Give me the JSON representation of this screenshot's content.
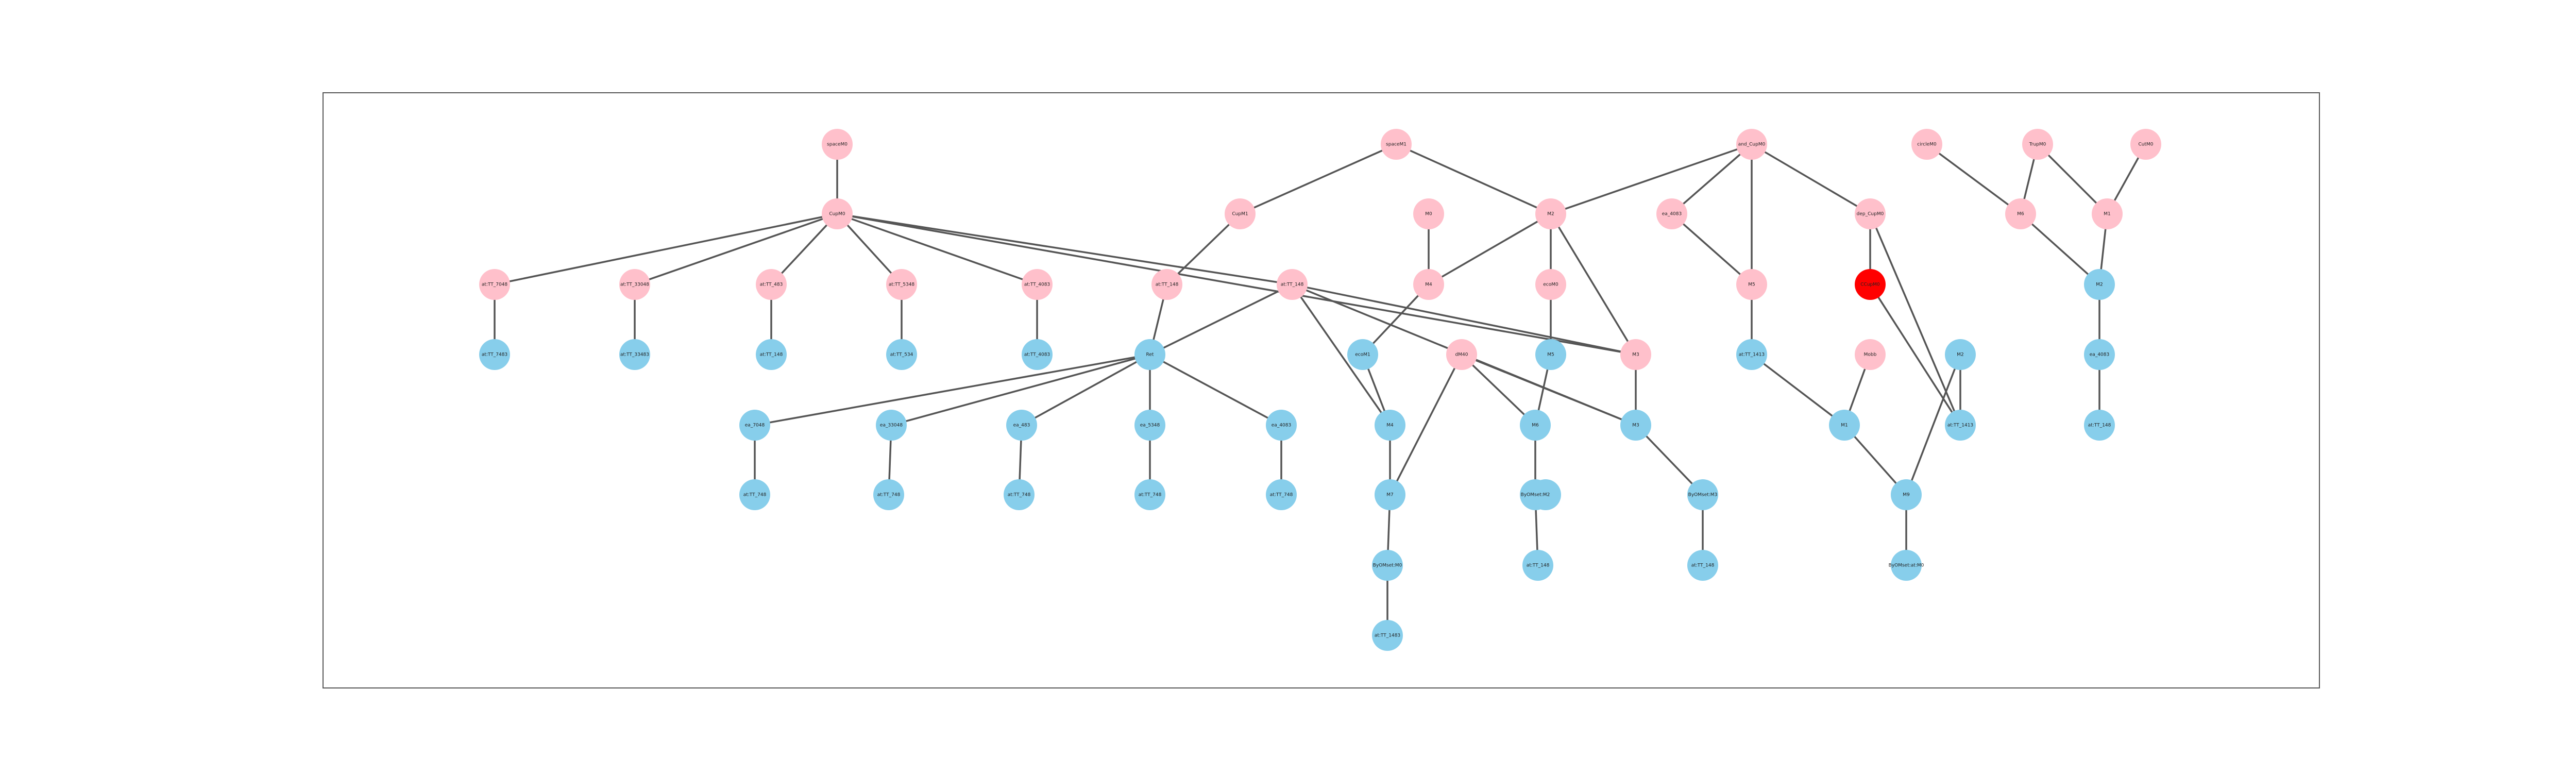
{
  "colors": {
    "pink": "#ffc0cb",
    "blue": "#87ceeb",
    "red": "#ff0000",
    "edge": "#555555",
    "frame": "#555555"
  },
  "nodes": [
    {
      "id": "n0",
      "label": "spaceM0",
      "color": "pink"
    },
    {
      "id": "n1",
      "label": "CupM0",
      "color": "pink"
    },
    {
      "id": "n2",
      "label": "at:TT_7048",
      "color": "pink"
    },
    {
      "id": "n3",
      "label": "at:TT_33048",
      "color": "pink"
    },
    {
      "id": "n4",
      "label": "at:TT_483",
      "color": "pink"
    },
    {
      "id": "n5",
      "label": "at:TT_5348",
      "color": "pink"
    },
    {
      "id": "n6",
      "label": "at:TT_4083",
      "color": "pink"
    },
    {
      "id": "n7",
      "label": "at:TT_7483",
      "color": "blue"
    },
    {
      "id": "n8",
      "label": "at:TT_33483",
      "color": "blue"
    },
    {
      "id": "n9",
      "label": "at:TT_148",
      "color": "blue"
    },
    {
      "id": "n10",
      "label": "at:TT_534",
      "color": "blue"
    },
    {
      "id": "n11",
      "label": "at:TT_4083",
      "color": "blue"
    },
    {
      "id": "n12",
      "label": "spaceM1",
      "color": "pink"
    },
    {
      "id": "n13",
      "label": "CupM1",
      "color": "pink"
    },
    {
      "id": "n14",
      "label": "at:TT_148",
      "color": "pink"
    },
    {
      "id": "n15",
      "label": "at:TT_148",
      "color": "pink"
    },
    {
      "id": "n16",
      "label": "M0",
      "color": "pink"
    },
    {
      "id": "n17",
      "label": "M2",
      "color": "pink"
    },
    {
      "id": "n18",
      "label": "M3",
      "color": "pink"
    },
    {
      "id": "n19",
      "label": "ecoM0",
      "color": "pink"
    },
    {
      "id": "n20",
      "label": "M4",
      "color": "pink"
    },
    {
      "id": "n21",
      "label": "ea_4083",
      "color": "pink"
    },
    {
      "id": "n22",
      "label": "and_CupM0",
      "color": "pink"
    },
    {
      "id": "n23",
      "label": "M5",
      "color": "pink"
    },
    {
      "id": "n24",
      "label": "dep_CupM0",
      "color": "pink"
    },
    {
      "id": "n25",
      "label": "CCupM0",
      "color": "red"
    },
    {
      "id": "n26",
      "label": "Mobb",
      "color": "pink"
    },
    {
      "id": "n27",
      "label": "circleM0",
      "color": "pink"
    },
    {
      "id": "n28",
      "label": "TrupM0",
      "color": "pink"
    },
    {
      "id": "n29",
      "label": "CutM0",
      "color": "pink"
    },
    {
      "id": "n30",
      "label": "M6",
      "color": "pink"
    },
    {
      "id": "n31",
      "label": "M1",
      "color": "pink"
    },
    {
      "id": "n32",
      "label": "Ret",
      "color": "blue"
    },
    {
      "id": "n33",
      "label": "ea_7048",
      "color": "blue"
    },
    {
      "id": "n34",
      "label": "ea_33048",
      "color": "blue"
    },
    {
      "id": "n35",
      "label": "ea_483",
      "color": "blue"
    },
    {
      "id": "n36",
      "label": "ea_5348",
      "color": "blue"
    },
    {
      "id": "n37",
      "label": "ea_4083",
      "color": "blue"
    },
    {
      "id": "n38",
      "label": "at:TT_748",
      "color": "blue"
    },
    {
      "id": "n39",
      "label": "at:TT_748",
      "color": "blue"
    },
    {
      "id": "n40",
      "label": "at:TT_748",
      "color": "blue"
    },
    {
      "id": "n41",
      "label": "at:TT_748",
      "color": "blue"
    },
    {
      "id": "n42",
      "label": "at:TT_748",
      "color": "blue"
    },
    {
      "id": "n43",
      "label": "ecoM1",
      "color": "blue"
    },
    {
      "id": "n44",
      "label": "M4",
      "color": "blue"
    },
    {
      "id": "n45",
      "label": "M5",
      "color": "blue"
    },
    {
      "id": "n46",
      "label": "dM40",
      "color": "pink"
    },
    {
      "id": "n47",
      "label": "M3",
      "color": "blue"
    },
    {
      "id": "n48",
      "label": "M6",
      "color": "blue"
    },
    {
      "id": "n49",
      "label": "M7",
      "color": "blue"
    },
    {
      "id": "n50",
      "label": "M8",
      "color": "blue"
    },
    {
      "id": "n51",
      "label": "ByOMset:M0",
      "color": "blue"
    },
    {
      "id": "n52",
      "label": "ByOMset:M2",
      "color": "blue"
    },
    {
      "id": "n53",
      "label": "ByOMset:M3",
      "color": "blue"
    },
    {
      "id": "n54",
      "label": "at:TT_1483",
      "color": "blue"
    },
    {
      "id": "n55",
      "label": "at:TT_148",
      "color": "blue"
    },
    {
      "id": "n56",
      "label": "at:TT_148",
      "color": "blue"
    },
    {
      "id": "n57",
      "label": "at:TT_1413",
      "color": "blue"
    },
    {
      "id": "n58",
      "label": "M1",
      "color": "blue"
    },
    {
      "id": "n59",
      "label": "at:TT_1413",
      "color": "blue"
    },
    {
      "id": "n60",
      "label": "M9",
      "color": "blue"
    },
    {
      "id": "n61",
      "label": "M2",
      "color": "blue"
    },
    {
      "id": "n62",
      "label": "ByOMset:at:M0",
      "color": "blue"
    },
    {
      "id": "n63",
      "label": "M2",
      "color": "blue"
    },
    {
      "id": "n64",
      "label": "ea_4083",
      "color": "blue"
    },
    {
      "id": "n65",
      "label": "at:TT_148",
      "color": "blue"
    }
  ],
  "edges": [
    [
      "n0",
      "n1"
    ],
    [
      "n1",
      "n2"
    ],
    [
      "n1",
      "n3"
    ],
    [
      "n1",
      "n4"
    ],
    [
      "n1",
      "n5"
    ],
    [
      "n1",
      "n6"
    ],
    [
      "n1",
      "n15"
    ],
    [
      "n1",
      "n18"
    ],
    [
      "n2",
      "n7"
    ],
    [
      "n3",
      "n8"
    ],
    [
      "n4",
      "n9"
    ],
    [
      "n5",
      "n10"
    ],
    [
      "n6",
      "n11"
    ],
    [
      "n12",
      "n13"
    ],
    [
      "n12",
      "n17"
    ],
    [
      "n13",
      "n14"
    ],
    [
      "n14",
      "n32"
    ],
    [
      "n15",
      "n32"
    ],
    [
      "n15",
      "n44"
    ],
    [
      "n15",
      "n47"
    ],
    [
      "n15",
      "n18"
    ],
    [
      "n32",
      "n33"
    ],
    [
      "n32",
      "n34"
    ],
    [
      "n32",
      "n35"
    ],
    [
      "n32",
      "n36"
    ],
    [
      "n32",
      "n37"
    ],
    [
      "n33",
      "n38"
    ],
    [
      "n34",
      "n39"
    ],
    [
      "n35",
      "n40"
    ],
    [
      "n36",
      "n41"
    ],
    [
      "n37",
      "n42"
    ],
    [
      "n16",
      "n20"
    ],
    [
      "n17",
      "n20"
    ],
    [
      "n17",
      "n19"
    ],
    [
      "n17",
      "n18"
    ],
    [
      "n20",
      "n43"
    ],
    [
      "n43",
      "n44"
    ],
    [
      "n44",
      "n49"
    ],
    [
      "n49",
      "n51"
    ],
    [
      "n51",
      "n54"
    ],
    [
      "n19",
      "n45"
    ],
    [
      "n45",
      "n48"
    ],
    [
      "n46",
      "n48"
    ],
    [
      "n46",
      "n49"
    ],
    [
      "n46",
      "n47"
    ],
    [
      "n48",
      "n52"
    ],
    [
      "n52",
      "n55"
    ],
    [
      "n18",
      "n47"
    ],
    [
      "n47",
      "n53"
    ],
    [
      "n53",
      "n56"
    ],
    [
      "n22",
      "n17"
    ],
    [
      "n22",
      "n21"
    ],
    [
      "n22",
      "n23"
    ],
    [
      "n22",
      "n24"
    ],
    [
      "n21",
      "n23"
    ],
    [
      "n23",
      "n57"
    ],
    [
      "n57",
      "n58"
    ],
    [
      "n26",
      "n58"
    ],
    [
      "n58",
      "n60"
    ],
    [
      "n24",
      "n25"
    ],
    [
      "n24",
      "n59"
    ],
    [
      "n25",
      "n59"
    ],
    [
      "n59",
      "n61"
    ],
    [
      "n61",
      "n60"
    ],
    [
      "n60",
      "n62"
    ],
    [
      "n27",
      "n30"
    ],
    [
      "n28",
      "n30"
    ],
    [
      "n28",
      "n31"
    ],
    [
      "n29",
      "n31"
    ],
    [
      "n30",
      "n63"
    ],
    [
      "n31",
      "n63"
    ],
    [
      "n63",
      "n64"
    ],
    [
      "n64",
      "n65"
    ]
  ]
}
